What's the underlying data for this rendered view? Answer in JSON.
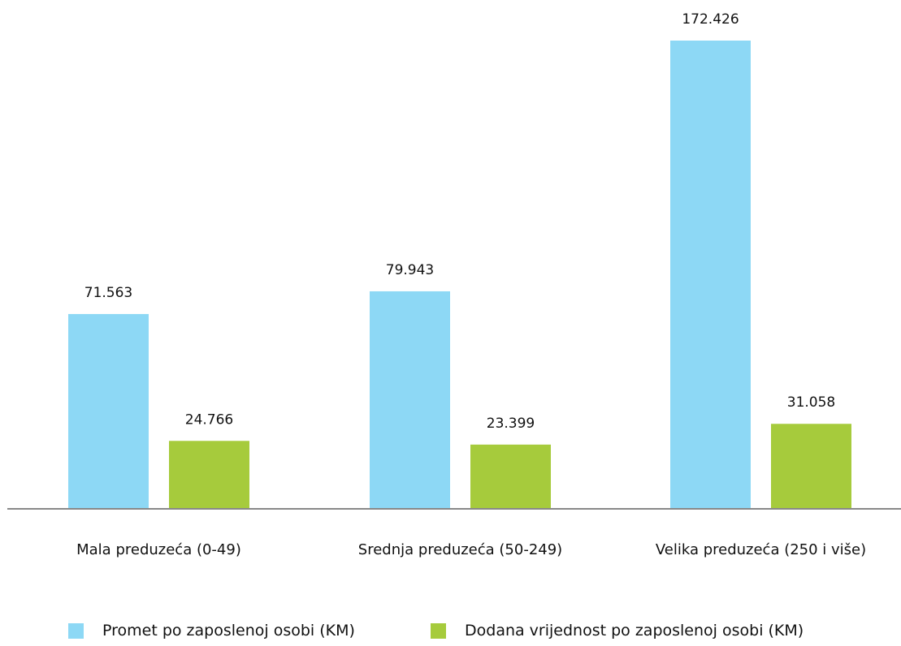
{
  "chart_data": {
    "type": "bar",
    "categories": [
      "Mala preduzeća (0-49)",
      "Srednja preduzeća (50-249)",
      "Velika preduzeća (250 i više)"
    ],
    "series": [
      {
        "name": "Promet po zaposlenoj osobi (KM)",
        "values": [
          71563,
          79943,
          172426
        ],
        "value_labels": [
          "71.563",
          "79.943",
          "172.426"
        ],
        "color": "#8dd8f5"
      },
      {
        "name": "Dodana vrijednost po zaposlenoj osobi (KM)",
        "values": [
          24766,
          23399,
          31058
        ],
        "value_labels": [
          "24.766",
          "23.399",
          "31.058"
        ],
        "color": "#a6cb3c"
      }
    ],
    "title": "",
    "xlabel": "",
    "ylabel": "",
    "ylim": [
      0,
      180000
    ],
    "grid": false,
    "legend": "bottom",
    "axis_color": "#888888"
  }
}
